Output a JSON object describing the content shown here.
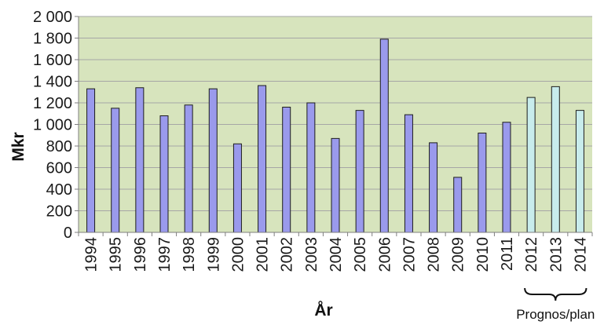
{
  "chart_data": {
    "type": "bar",
    "xlabel": "År",
    "ylabel": "Mkr",
    "ylim": [
      0,
      2000
    ],
    "yticks": [
      0,
      200,
      400,
      600,
      800,
      1000,
      1200,
      1400,
      1600,
      1800,
      2000
    ],
    "ytick_labels": [
      "0",
      "200",
      "400",
      "600",
      "800",
      "1 000",
      "1 200",
      "1 400",
      "1 600",
      "1 800",
      "2 000"
    ],
    "grid": "horizontal",
    "categories": [
      "1994",
      "1995",
      "1996",
      "1997",
      "1998",
      "1999",
      "2000",
      "2001",
      "2002",
      "2003",
      "2004",
      "2005",
      "2006",
      "2007",
      "2008",
      "2009",
      "2010",
      "2011",
      "2012",
      "2013",
      "2014"
    ],
    "values": [
      1330,
      1150,
      1340,
      1080,
      1180,
      1330,
      820,
      1360,
      1160,
      1200,
      870,
      1130,
      1790,
      1090,
      830,
      510,
      920,
      1020,
      1250,
      1350,
      1130
    ],
    "forecast_from": "2012",
    "forecast_label": "Prognos/plan",
    "colors": {
      "plot_bg": "#d7e4bd",
      "grid": "#a6a6a6",
      "actual_bar": "#9a9aec",
      "forecast_bar": "#c8ecec",
      "bar_stroke": "#1c1c1c"
    }
  }
}
